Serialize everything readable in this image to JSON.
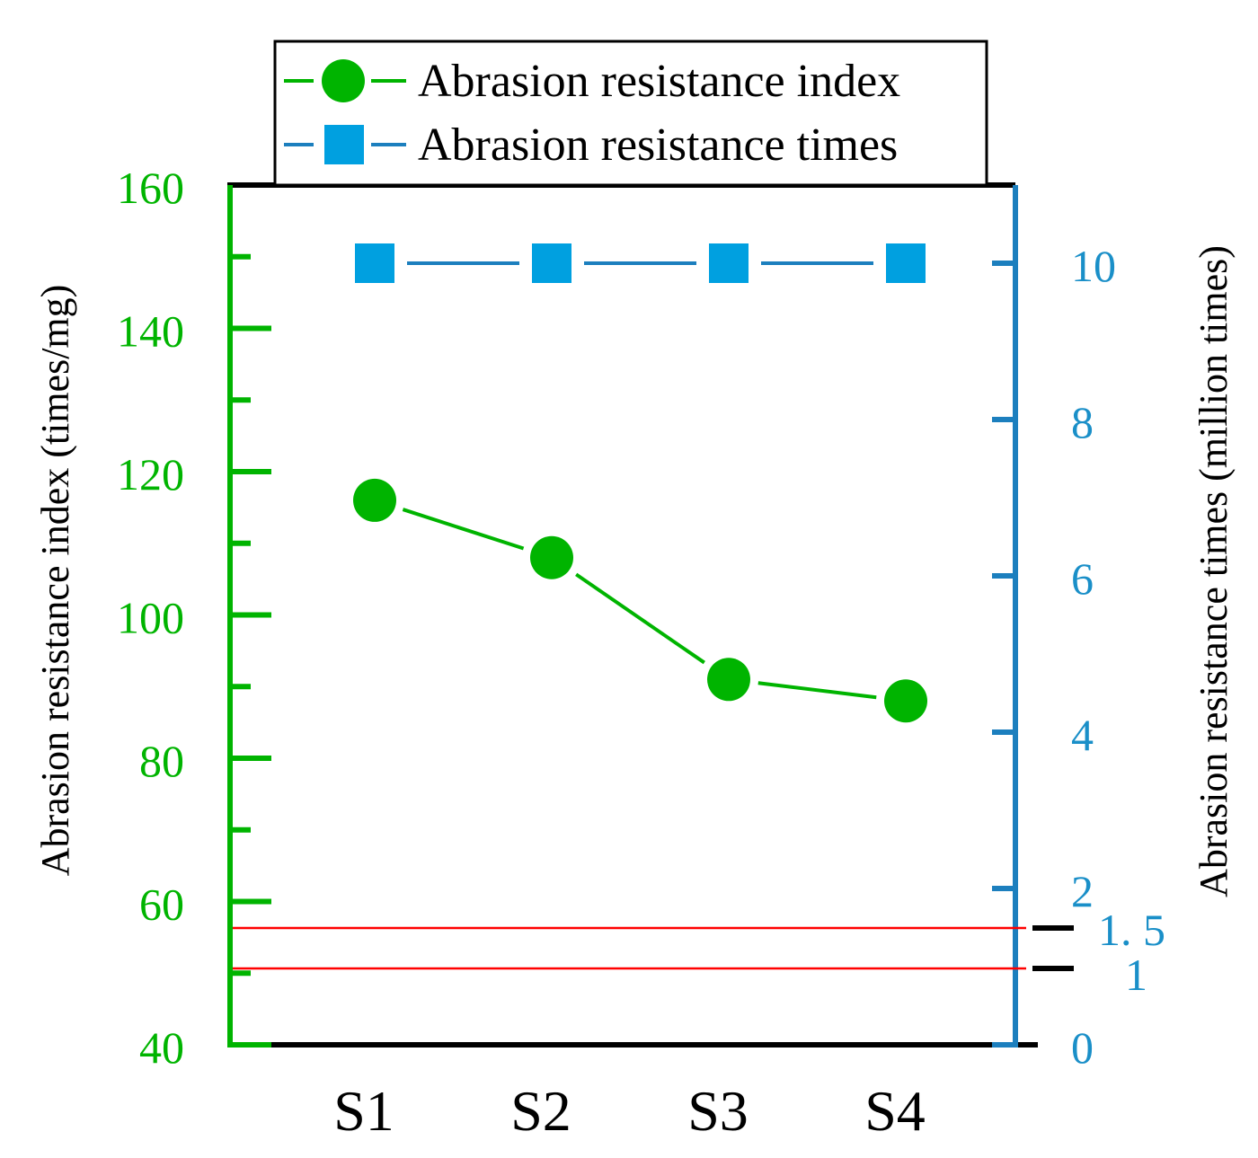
{
  "chart_data": {
    "type": "line",
    "categories": [
      "S1",
      "S2",
      "S3",
      "S4"
    ],
    "series": [
      {
        "name": "Abrasion resistance index",
        "axis": "left",
        "marker": "circle",
        "color": "#00B400",
        "values": [
          116,
          108,
          91,
          88
        ]
      },
      {
        "name": "Abrasion resistance times",
        "axis": "right",
        "marker": "square",
        "color": "#00A0E0",
        "values": [
          10,
          10,
          10,
          10
        ]
      }
    ],
    "y_left": {
      "label": "Abrasion resistance index (times/mg)",
      "min": 40,
      "max": 160,
      "ticks": [
        "40",
        "60",
        "80",
        "100",
        "120",
        "140",
        "160"
      ],
      "tick_values": [
        40,
        60,
        80,
        100,
        120,
        140,
        160
      ],
      "minor_tick_values": [
        50,
        70,
        90,
        110,
        130,
        150
      ],
      "color": "#00B400"
    },
    "y_right": {
      "label": "Abrasion resistance times (million times)",
      "min": 0,
      "max": 11,
      "ticks": [
        "0",
        "2",
        "4",
        "6",
        "8",
        "10"
      ],
      "tick_values": [
        0,
        2,
        4,
        6,
        8,
        10
      ],
      "minor_tick_values": [
        1,
        3,
        5,
        7,
        9
      ],
      "color": "#1C7FBE",
      "tick_label_color": "#1A8FC8"
    },
    "reference_lines": [
      {
        "label": "1.5",
        "display": "1. 5",
        "value": 1.5,
        "axis": "right",
        "color": "#FF0000"
      },
      {
        "label": "1",
        "display": "1",
        "value": 1,
        "axis": "right",
        "color": "#FF0000"
      }
    ],
    "legend": {
      "position": "top-center",
      "entries": [
        "Abrasion resistance index",
        "Abrasion resistance times"
      ]
    }
  }
}
